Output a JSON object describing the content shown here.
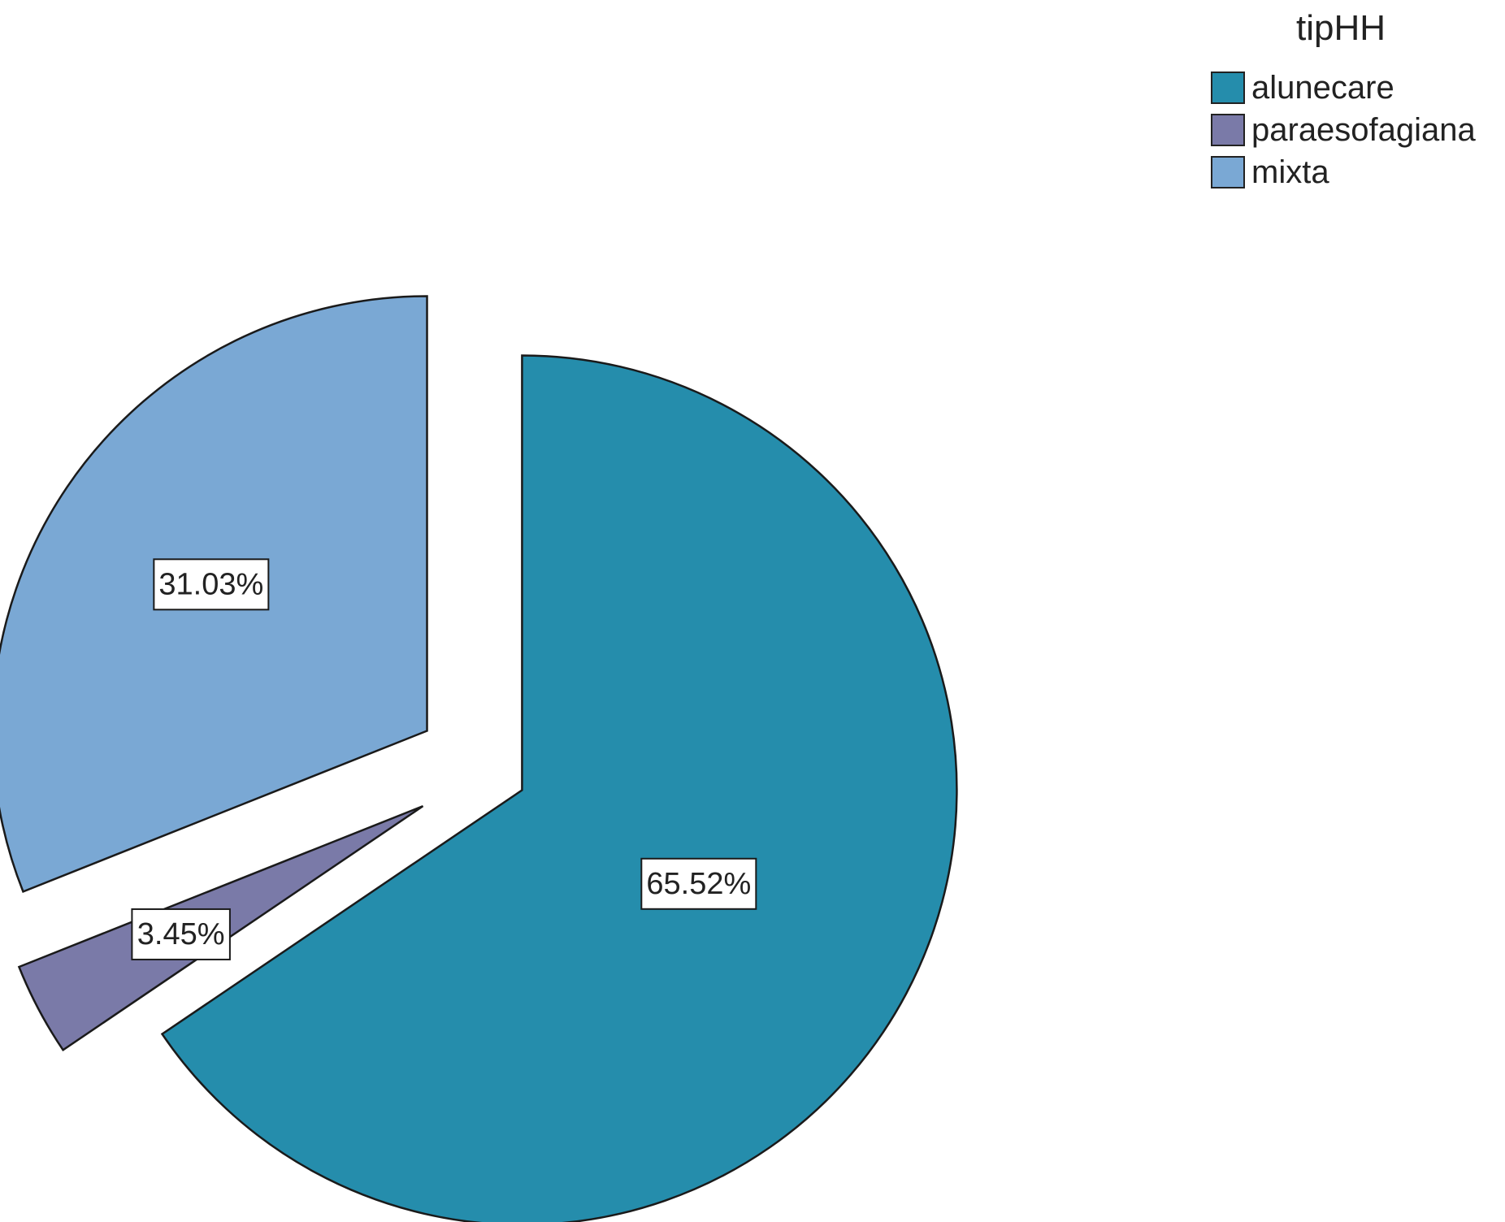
{
  "chart_data": {
    "type": "pie",
    "legend_title": "tipHH",
    "legend_position": "top-right",
    "slices": [
      {
        "label": "alunecare",
        "value": 65.52,
        "value_label": "65.52%",
        "color": "#258dac"
      },
      {
        "label": "paraesofagiana",
        "value": 3.45,
        "value_label": "3.45%",
        "color": "#7a7aa8"
      },
      {
        "label": "mixta",
        "value": 31.03,
        "value_label": "31.03%",
        "color": "#7aa8d4"
      }
    ],
    "exploded": true
  }
}
